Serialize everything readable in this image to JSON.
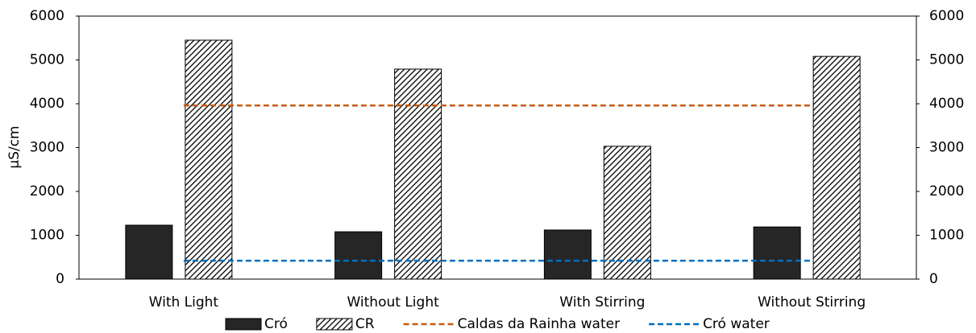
{
  "chart_data": {
    "type": "bar",
    "y_label": "µS/cm",
    "categories": [
      "With Light",
      "Without Light",
      "With Stirring",
      "Without Stirring"
    ],
    "series": [
      {
        "name": "Cró",
        "type": "bar",
        "color": "#262626",
        "values": [
          1230,
          1080,
          1120,
          1190
        ]
      },
      {
        "name": "CR",
        "type": "bar",
        "color": "#000000",
        "hatch": true,
        "values": [
          5450,
          4790,
          3030,
          5080
        ]
      },
      {
        "name": "Caldas da Rainha water",
        "type": "line",
        "dashed": true,
        "axis": "y2",
        "color": "#c55a11",
        "values": [
          3960,
          3960,
          3960,
          3960
        ]
      },
      {
        "name": "Cró water",
        "type": "line",
        "dashed": true,
        "axis": "y2",
        "color": "#0070c0",
        "values": [
          420,
          420,
          420,
          420
        ]
      }
    ],
    "ylim": [
      0,
      6000
    ],
    "yticks": [
      0,
      1000,
      2000,
      3000,
      4000,
      5000,
      6000
    ],
    "y2lim": [
      0,
      6000
    ],
    "y2ticks": [
      0,
      1000,
      2000,
      3000,
      4000,
      5000,
      6000
    ],
    "legend": "bottom",
    "grid": false
  }
}
